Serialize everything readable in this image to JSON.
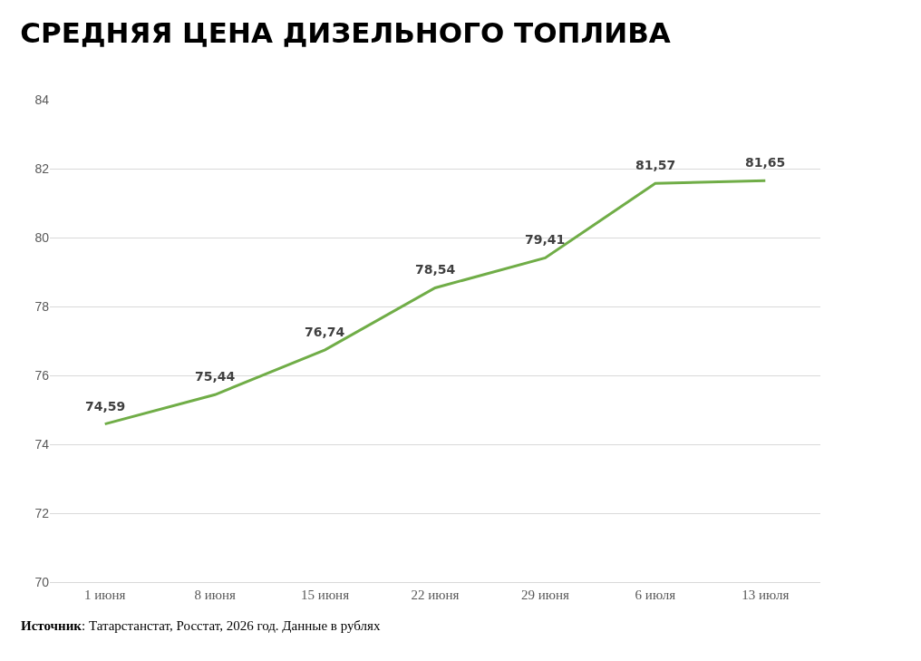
{
  "chart_data": {
    "type": "line",
    "title": "СРЕДНЯЯ ЦЕНА ДИЗЕЛЬНОГО ТОПЛИВА",
    "categories": [
      "1 июня",
      "8 июня",
      "15 июня",
      "22 июня",
      "29 июня",
      "6 июля",
      "13 июля"
    ],
    "series": [
      {
        "color": "#70ad47",
        "values": [
          74.59,
          75.44,
          76.74,
          78.54,
          79.41,
          81.57,
          81.65
        ]
      }
    ],
    "value_labels": [
      "74,59",
      "75,44",
      "76,74",
      "78,54",
      "79,41",
      "81,57",
      "81,65"
    ],
    "ylim": [
      70,
      84
    ],
    "yticks": [
      70,
      72,
      74,
      76,
      78,
      80,
      82,
      84
    ],
    "grid": "y",
    "marker": "none",
    "line_style": "solid",
    "annotations": [
      "Источник: Татарстанстат, Росстат, 2026 год. Данные в рублях"
    ]
  }
}
